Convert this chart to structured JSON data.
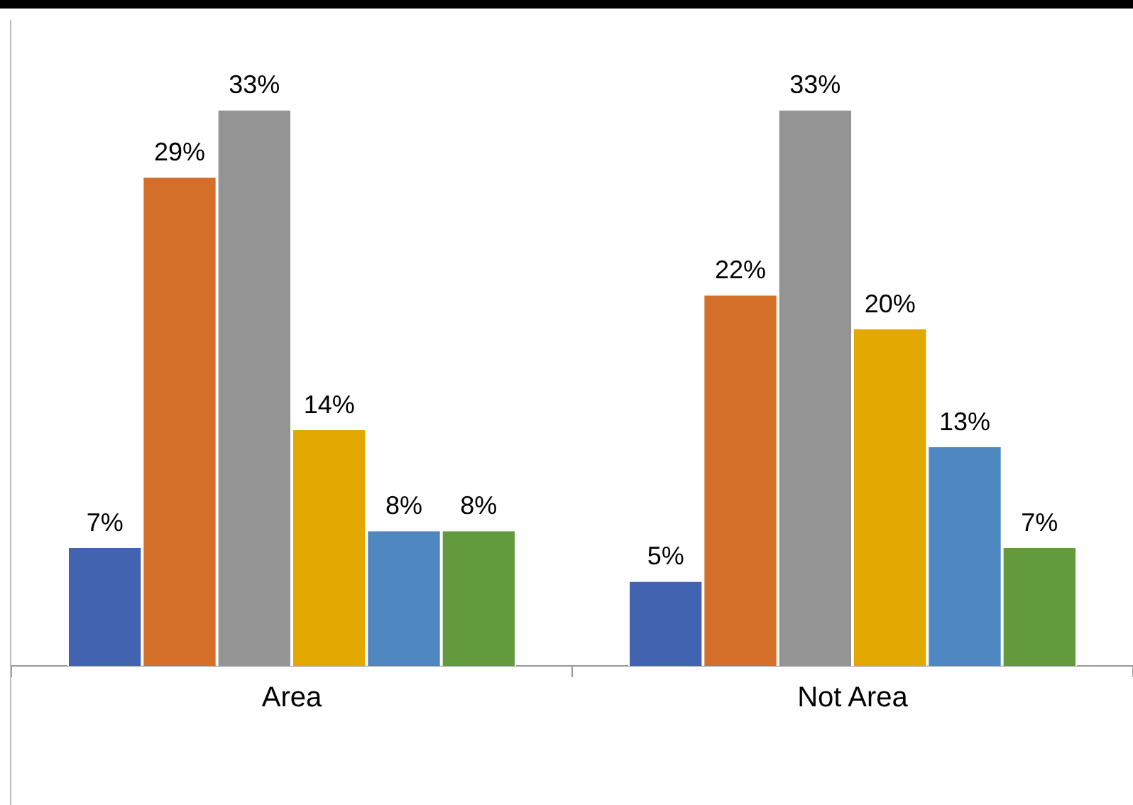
{
  "chart_data": {
    "type": "bar",
    "categories": [
      "Area",
      "Not Area"
    ],
    "series": [
      {
        "color": "#4264b0",
        "values": [
          7,
          5
        ],
        "value_labels": [
          "7%",
          "5%"
        ]
      },
      {
        "color": "#d46f2a",
        "values": [
          29,
          22
        ],
        "value_labels": [
          "29%",
          "22%"
        ]
      },
      {
        "color": "#949494",
        "values": [
          33,
          33
        ],
        "value_labels": [
          "33%",
          "33%"
        ]
      },
      {
        "color": "#e2a800",
        "values": [
          14,
          20
        ],
        "value_labels": [
          "14%",
          "20%"
        ]
      },
      {
        "color": "#4f88c0",
        "values": [
          8,
          13
        ],
        "value_labels": [
          "8%",
          "13%"
        ]
      },
      {
        "color": "#639a3e",
        "values": [
          8,
          7
        ],
        "value_labels": [
          "8%",
          "7%"
        ]
      }
    ],
    "tick_labels": "x",
    "grid": false,
    "legend": false
  }
}
